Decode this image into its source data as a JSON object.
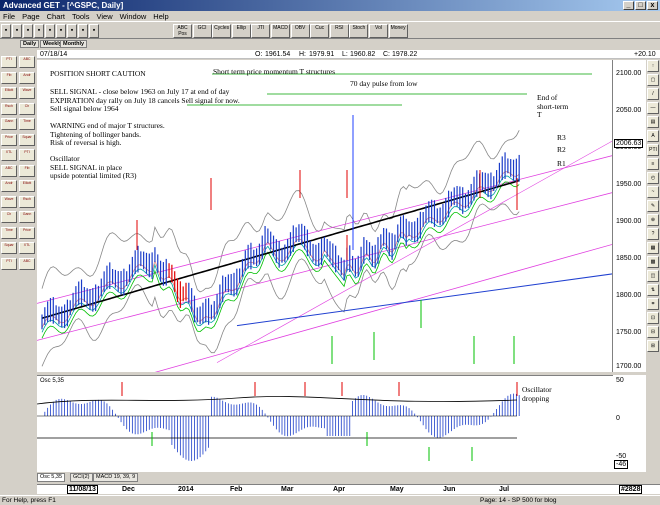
{
  "window": {
    "title": "Advanced GET - [^GSPC, Daily]",
    "controls": [
      "_",
      "□",
      "x"
    ]
  },
  "menu": [
    "File",
    "Page",
    "Chart",
    "Tools",
    "View",
    "Window",
    "Help"
  ],
  "toolbar": {
    "buttons": [
      "ABC Pos",
      "GCI",
      "Cycles",
      "Ellip",
      "JTI",
      "MACD",
      "OBV",
      "Cuc",
      "RSI",
      "Stoch",
      "Vol",
      "Money"
    ]
  },
  "subtabs": [
    "Daily",
    "Weekly",
    "Monthly"
  ],
  "info": {
    "date": "07/18/14",
    "open_label": "O:",
    "open": "1961.54",
    "high_label": "H:",
    "high": "1979.91",
    "low_label": "L:",
    "low": "1960.82",
    "close_label": "C:",
    "close": "1978.22",
    "change": "+20.10"
  },
  "annotations": {
    "position": "POSITION SHORT CAUTION",
    "momentum": "Short term price momentum T structures",
    "pulse": "70 day pulse from low",
    "sell_lines": [
      "SELL SIGNAL - close below 1963 on July 17 at end of day",
      "EXPIRATION day rally on July 18 cancels Sell signal for now.",
      "Sell signal below 1964"
    ],
    "warning_lines": [
      "WARNING end of major T structures.",
      "Tightening of bollinger bands.",
      "Risk of reversal is high."
    ],
    "osc_lines": [
      "Oscillator",
      "SELL SIGNAL in place",
      "upside potential limited (R3)"
    ],
    "end_lines": [
      "End of",
      "short-term",
      "T"
    ],
    "r3": "R3",
    "r2": "R2",
    "r1": "R1",
    "osc_dropping_lines": [
      "Oscillator",
      "dropping"
    ]
  },
  "price_axis": {
    "labels": [
      "2100.00",
      "2050.00",
      "2000.00",
      "1950.00",
      "1900.00",
      "1850.00",
      "1800.00",
      "1750.00"
    ],
    "current": "2006.63",
    "bottom": "1700.00"
  },
  "osc_axis": {
    "labels": [
      "50",
      "0",
      "-50"
    ],
    "current": "-46"
  },
  "osc_label": "Osc 5,35",
  "bottom_tabs": [
    "Osc 5,35",
    "GCI(2)",
    "MACD 19, 39, 9"
  ],
  "dates": {
    "first": "11/08/13",
    "labels": [
      "Dec",
      "2014",
      "Feb",
      "Mar",
      "Apr",
      "May",
      "Jun",
      "Jul"
    ],
    "tag": "#2828"
  },
  "status": {
    "help": "For Help, press F1",
    "page": "Page: 14 - SP 500 for blog"
  },
  "left_tools": [
    "PTI",
    "ABC",
    "Fib",
    "Andr",
    "Elliott",
    "Wave",
    "Rsch",
    "Ch",
    "Gann",
    "Time",
    "Price",
    "Squar",
    "XTL"
  ],
  "right_tools": [
    "↑",
    "▢",
    "/",
    "—",
    "▤",
    "A",
    "PTI",
    "≡",
    "◴",
    "~",
    "✎",
    "⊕",
    "?",
    "▦",
    "▩",
    "◫",
    "⇅",
    "⌗",
    "⊡",
    "⊟",
    "⊞"
  ],
  "colors": {
    "accent": "#0a246a",
    "bars": "#1a3cc8",
    "down": "#e00000",
    "up": "#00b000"
  }
}
